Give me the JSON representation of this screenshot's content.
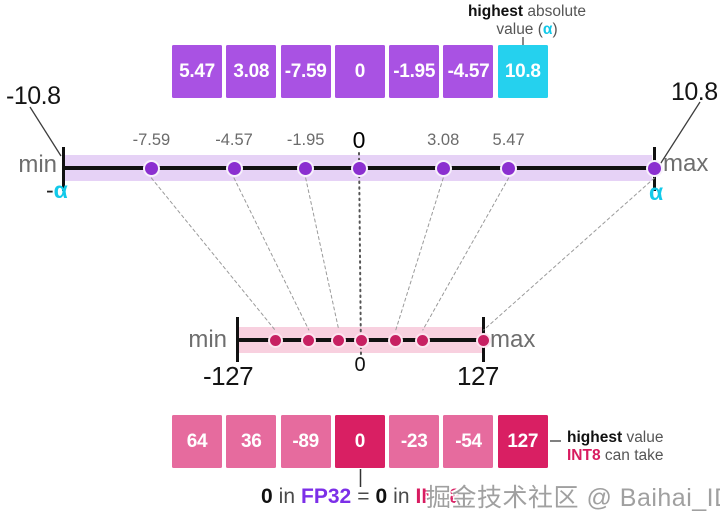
{
  "top_label": {
    "bold": "highest",
    "rest": "absolute",
    "line2_pre": "value (",
    "alpha": "α",
    "line2_post": ")"
  },
  "fp32_row": {
    "cells": [
      "5.47",
      "3.08",
      "-7.59",
      "0",
      "-1.95",
      "-4.57",
      "10.8"
    ],
    "highlight_index": 6
  },
  "fp32_axis": {
    "min_label": "min",
    "max_label": "max",
    "neg_alpha_prefix": "-",
    "alpha": "α",
    "min_value": "-10.8",
    "max_value": "10.8",
    "range": 10.8,
    "points": [
      {
        "value": -7.59,
        "label": "-7.59"
      },
      {
        "value": -4.57,
        "label": "-4.57"
      },
      {
        "value": -1.95,
        "label": "-1.95"
      },
      {
        "value": 0,
        "label": "0",
        "zero": true
      },
      {
        "value": 3.08,
        "label": "3.08"
      },
      {
        "value": 5.47,
        "label": "5.47"
      },
      {
        "value": 10.8,
        "label": "",
        "max": true
      }
    ]
  },
  "int8_axis": {
    "min_label": "min",
    "max_label": "max",
    "min_value": "-127",
    "max_value": "127",
    "zero_label": "0",
    "range": 127,
    "points": [
      {
        "value": -89
      },
      {
        "value": -54
      },
      {
        "value": -23
      },
      {
        "value": 0,
        "zero": true
      },
      {
        "value": 36
      },
      {
        "value": 64
      },
      {
        "value": 127,
        "max": true
      }
    ]
  },
  "int8_row": {
    "cells": [
      "64",
      "36",
      "-89",
      "0",
      "-23",
      "-54",
      "127"
    ],
    "highlight_indices": [
      3,
      6
    ]
  },
  "int8_label": {
    "bold": "highest",
    "rest": "value",
    "line2_bold": "INT8",
    "line2_rest": "can take"
  },
  "equation": {
    "zero1": "0",
    "in1": "in",
    "fp32": "FP32",
    "eq": "=",
    "zero2": "0",
    "in2": "in",
    "int8": "INT8"
  },
  "watermark": "掘金技术社区 @ Baihai_IDP",
  "colors": {
    "purple": "#a952e3",
    "cyan": "#25d1ee",
    "purple_band": "#e6d2f6",
    "purple_dot": "#8b2fd0",
    "pink": "#e66b9e",
    "crimson": "#d91f63",
    "pink_band": "#f8d0df",
    "pink_dot": "#c72062",
    "fp32_text": "#7c2fe8",
    "int8_text": "#d81b60",
    "alpha_text": "#12c9e9",
    "connector": "#9a9a9a"
  }
}
